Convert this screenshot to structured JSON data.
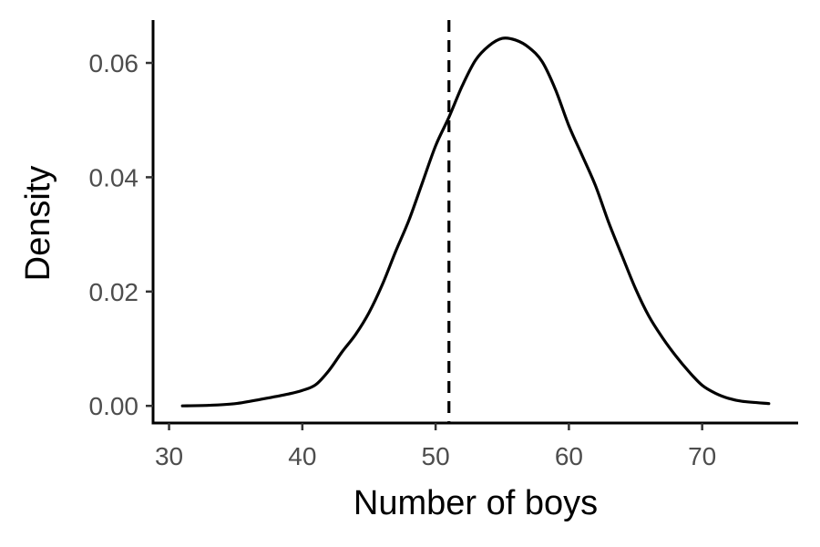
{
  "chart_data": {
    "type": "line",
    "title": "",
    "xlabel": "Number of boys",
    "ylabel": "Density",
    "xlim": [
      28.8,
      77.2
    ],
    "ylim": [
      -0.003,
      0.0675
    ],
    "x_ticks": [
      30,
      40,
      50,
      60,
      70
    ],
    "x_tick_labels": [
      "30",
      "40",
      "50",
      "60",
      "70"
    ],
    "y_ticks": [
      0.0,
      0.02,
      0.04,
      0.06
    ],
    "y_tick_labels": [
      "0.00",
      "0.02",
      "0.04",
      "0.06"
    ],
    "grid": false,
    "legend": "none",
    "series": [
      {
        "x": [
          31,
          33,
          35,
          37,
          39,
          40,
          41,
          42,
          43,
          44,
          45,
          46,
          47,
          48,
          49,
          50,
          51,
          52,
          53,
          54,
          55,
          56,
          57,
          58,
          59,
          60,
          61,
          62,
          63,
          64,
          65,
          66,
          67,
          68,
          69,
          70,
          71,
          72,
          73,
          75
        ],
        "y": [
          0.0,
          0.0001,
          0.0004,
          0.0012,
          0.0021,
          0.0027,
          0.0037,
          0.0062,
          0.0095,
          0.0125,
          0.0163,
          0.0212,
          0.027,
          0.0325,
          0.039,
          0.0455,
          0.0505,
          0.056,
          0.0605,
          0.063,
          0.0643,
          0.064,
          0.0627,
          0.0602,
          0.0553,
          0.049,
          0.0438,
          0.0385,
          0.032,
          0.0262,
          0.0205,
          0.0157,
          0.012,
          0.0088,
          0.006,
          0.0036,
          0.0022,
          0.0013,
          0.0008,
          0.0004
        ],
        "color": "#000000"
      }
    ],
    "reference_line": {
      "orientation": "vertical",
      "x": 51,
      "style": "dashed",
      "color": "#000000"
    }
  }
}
